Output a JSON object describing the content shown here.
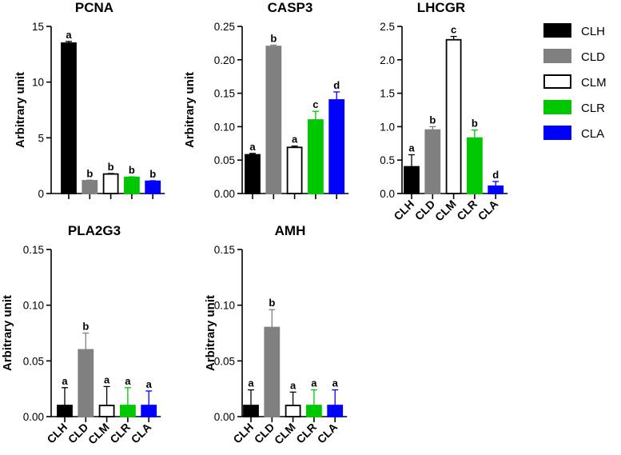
{
  "chart_data": [
    {
      "type": "bar",
      "title": "PCNA",
      "ylabel": "Arbitrary unit",
      "ylim": [
        0,
        15
      ],
      "yticks": [
        "0",
        "5",
        "10",
        "15"
      ],
      "ytick_values": [
        0,
        5,
        10,
        15
      ],
      "show_category_labels": false,
      "categories": [
        "CLH",
        "CLD",
        "CLM",
        "CLR",
        "CLA"
      ],
      "values": [
        13.5,
        1.15,
        1.75,
        1.45,
        1.1
      ],
      "errors": [
        0.15,
        0.05,
        0.05,
        0.05,
        0.05
      ],
      "significance": [
        "a",
        "b",
        "b",
        "b",
        "b"
      ]
    },
    {
      "type": "bar",
      "title": "CASP3",
      "ylabel": "Arbitrary unit",
      "ylim": [
        0,
        0.25
      ],
      "yticks": [
        "0.00",
        "0.05",
        "0.10",
        "0.15",
        "0.20",
        "0.25"
      ],
      "ytick_values": [
        0,
        0.05,
        0.1,
        0.15,
        0.2,
        0.25
      ],
      "show_category_labels": false,
      "categories": [
        "CLH",
        "CLD",
        "CLM",
        "CLR",
        "CLA"
      ],
      "values": [
        0.058,
        0.22,
        0.069,
        0.11,
        0.14
      ],
      "errors": [
        0.002,
        0.002,
        0.002,
        0.013,
        0.012
      ],
      "significance": [
        "a",
        "b",
        "a",
        "c",
        "d"
      ]
    },
    {
      "type": "bar",
      "title": "LHCGR",
      "ylabel": "",
      "ylim": [
        0,
        2.5
      ],
      "yticks": [
        "0.0",
        "0.5",
        "1.0",
        "1.5",
        "2.0",
        "2.5"
      ],
      "ytick_values": [
        0,
        0.5,
        1,
        1.5,
        2,
        2.5
      ],
      "show_category_labels": true,
      "categories": [
        "CLH",
        "CLD",
        "CLM",
        "CLR",
        "CLA"
      ],
      "values": [
        0.4,
        0.95,
        2.3,
        0.83,
        0.11
      ],
      "errors": [
        0.18,
        0.05,
        0.05,
        0.12,
        0.07
      ],
      "significance": [
        "a",
        "b",
        "c",
        "b",
        "d"
      ]
    },
    {
      "type": "bar",
      "title": "PLA2G3",
      "ylabel": "Arbitrary unit",
      "ylim": [
        0,
        0.15
      ],
      "yticks": [
        "0.00",
        "0.05",
        "0.10",
        "0.15"
      ],
      "ytick_values": [
        0,
        0.05,
        0.1,
        0.15
      ],
      "show_category_labels": true,
      "categories": [
        "CLH",
        "CLD",
        "CLM",
        "CLR",
        "CLA"
      ],
      "values": [
        0.01,
        0.06,
        0.01,
        0.01,
        0.01
      ],
      "errors": [
        0.016,
        0.015,
        0.017,
        0.016,
        0.013
      ],
      "significance": [
        "a",
        "b",
        "a",
        "a",
        "a"
      ]
    },
    {
      "type": "bar",
      "title": "AMH",
      "ylabel": "Arbitrary unit",
      "ylim": [
        0,
        0.15
      ],
      "yticks": [
        "0.00",
        "0.05",
        "0.10",
        "0.15"
      ],
      "ytick_values": [
        0,
        0.05,
        0.1,
        0.15
      ],
      "show_category_labels": true,
      "categories": [
        "CLH",
        "CLD",
        "CLM",
        "CLR",
        "CLA"
      ],
      "values": [
        0.01,
        0.08,
        0.01,
        0.01,
        0.01
      ],
      "errors": [
        0.014,
        0.016,
        0.012,
        0.014,
        0.014
      ],
      "significance": [
        "a",
        "b",
        "a",
        "a",
        "a"
      ]
    }
  ],
  "legend": {
    "placement": "right",
    "items": [
      {
        "label": "CLH",
        "fill": "#000000",
        "stroke": "#000000"
      },
      {
        "label": "CLD",
        "fill": "#808080",
        "stroke": "#808080"
      },
      {
        "label": "CLM",
        "fill": "#ffffff",
        "stroke": "#000000"
      },
      {
        "label": "CLR",
        "fill": "#00c800",
        "stroke": "#00c800"
      },
      {
        "label": "CLA",
        "fill": "#0000ff",
        "stroke": "#0000ff"
      }
    ]
  },
  "colors": {
    "CLH": {
      "fill": "#000000",
      "stroke": "#000000"
    },
    "CLD": {
      "fill": "#808080",
      "stroke": "#808080"
    },
    "CLM": {
      "fill": "#ffffff",
      "stroke": "#000000"
    },
    "CLR": {
      "fill": "#00c800",
      "stroke": "#00c800"
    },
    "CLA": {
      "fill": "#0000ff",
      "stroke": "#0000ff"
    }
  }
}
